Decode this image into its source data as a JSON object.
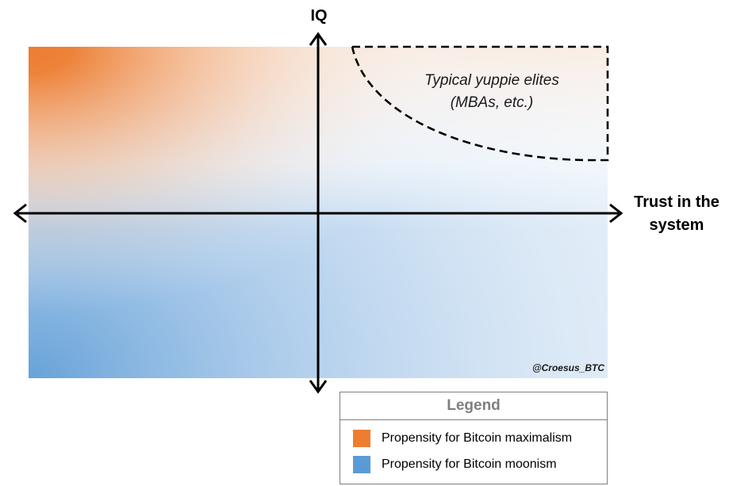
{
  "diagram": {
    "y_axis_label": "IQ",
    "x_axis_label_line1": "Trust in the",
    "x_axis_label_line2": "system",
    "region_label_line1": "Typical yuppie elites",
    "region_label_line2": "(MBAs, etc.)",
    "watermark": "@Croesus_BTC"
  },
  "legend": {
    "title": "Legend",
    "items": [
      {
        "label": "Propensity for Bitcoin maximalism",
        "color": "#ED7D31"
      },
      {
        "label": "Propensity for Bitcoin moonism",
        "color": "#5B9BD5"
      }
    ]
  },
  "colors": {
    "orange": "#ED7D31",
    "blue": "#5B9BD5",
    "axis": "#000000",
    "legend_border": "#7F7F7F",
    "legend_title": "#7F7F7F"
  }
}
